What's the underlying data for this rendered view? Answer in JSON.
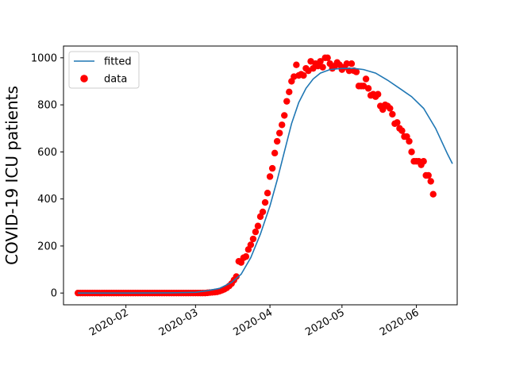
{
  "chart_data": {
    "type": "scatter",
    "title": "",
    "xlabel": "",
    "ylabel": "COVID-19 ICU patients",
    "x_ticks": [
      "2020-02",
      "2020-03",
      "2020-04",
      "2020-05",
      "2020-06"
    ],
    "y_ticks": [
      "0",
      "200",
      "400",
      "600",
      "800",
      "1000"
    ],
    "xlim": [
      "2020-01-06",
      "2020-06-18"
    ],
    "ylim": [
      -50,
      1050
    ],
    "grid": false,
    "legend_position": "top-left",
    "legend": [
      {
        "label": "fitted",
        "kind": "line",
        "color": "#1f77b4"
      },
      {
        "label": "data",
        "kind": "marker",
        "color": "#ff0000"
      }
    ],
    "series": [
      {
        "name": "fitted",
        "kind": "line",
        "color": "#1f77b4",
        "points": [
          [
            "2020-01-12",
            0
          ],
          [
            "2020-02-01",
            0
          ],
          [
            "2020-02-20",
            1
          ],
          [
            "2020-03-01",
            3
          ],
          [
            "2020-03-06",
            10
          ],
          [
            "2020-03-11",
            20
          ],
          [
            "2020-03-16",
            45
          ],
          [
            "2020-03-20",
            80
          ],
          [
            "2020-03-24",
            150
          ],
          [
            "2020-03-28",
            250
          ],
          [
            "2020-04-01",
            370
          ],
          [
            "2020-04-04",
            480
          ],
          [
            "2020-04-07",
            600
          ],
          [
            "2020-04-10",
            720
          ],
          [
            "2020-04-13",
            810
          ],
          [
            "2020-04-16",
            870
          ],
          [
            "2020-04-19",
            910
          ],
          [
            "2020-04-22",
            935
          ],
          [
            "2020-04-26",
            950
          ],
          [
            "2020-05-01",
            955
          ],
          [
            "2020-05-06",
            955
          ],
          [
            "2020-05-10",
            950
          ],
          [
            "2020-05-15",
            935
          ],
          [
            "2020-05-20",
            905
          ],
          [
            "2020-05-25",
            870
          ],
          [
            "2020-05-30",
            835
          ],
          [
            "2020-06-04",
            785
          ],
          [
            "2020-06-09",
            700
          ],
          [
            "2020-06-14",
            590
          ],
          [
            "2020-06-16",
            550
          ]
        ]
      },
      {
        "name": "data",
        "kind": "scatter",
        "color": "#ff0000",
        "points": [
          [
            "2020-01-12",
            0
          ],
          [
            "2020-01-13",
            0
          ],
          [
            "2020-01-14",
            0
          ],
          [
            "2020-01-15",
            0
          ],
          [
            "2020-01-16",
            0
          ],
          [
            "2020-01-17",
            0
          ],
          [
            "2020-01-18",
            0
          ],
          [
            "2020-01-19",
            0
          ],
          [
            "2020-01-20",
            0
          ],
          [
            "2020-01-21",
            0
          ],
          [
            "2020-01-22",
            0
          ],
          [
            "2020-01-23",
            0
          ],
          [
            "2020-01-24",
            0
          ],
          [
            "2020-01-25",
            0
          ],
          [
            "2020-01-26",
            0
          ],
          [
            "2020-01-27",
            0
          ],
          [
            "2020-01-28",
            0
          ],
          [
            "2020-01-29",
            0
          ],
          [
            "2020-01-30",
            0
          ],
          [
            "2020-01-31",
            0
          ],
          [
            "2020-02-01",
            0
          ],
          [
            "2020-02-02",
            0
          ],
          [
            "2020-02-03",
            0
          ],
          [
            "2020-02-04",
            0
          ],
          [
            "2020-02-05",
            0
          ],
          [
            "2020-02-06",
            0
          ],
          [
            "2020-02-07",
            0
          ],
          [
            "2020-02-08",
            0
          ],
          [
            "2020-02-09",
            0
          ],
          [
            "2020-02-10",
            0
          ],
          [
            "2020-02-11",
            0
          ],
          [
            "2020-02-12",
            0
          ],
          [
            "2020-02-13",
            0
          ],
          [
            "2020-02-14",
            0
          ],
          [
            "2020-02-15",
            0
          ],
          [
            "2020-02-16",
            0
          ],
          [
            "2020-02-17",
            0
          ],
          [
            "2020-02-18",
            0
          ],
          [
            "2020-02-19",
            0
          ],
          [
            "2020-02-20",
            0
          ],
          [
            "2020-02-21",
            0
          ],
          [
            "2020-02-22",
            0
          ],
          [
            "2020-02-23",
            0
          ],
          [
            "2020-02-24",
            0
          ],
          [
            "2020-02-25",
            0
          ],
          [
            "2020-02-26",
            0
          ],
          [
            "2020-02-27",
            0
          ],
          [
            "2020-02-28",
            0
          ],
          [
            "2020-02-29",
            0
          ],
          [
            "2020-03-01",
            0
          ],
          [
            "2020-03-02",
            0
          ],
          [
            "2020-03-03",
            0
          ],
          [
            "2020-03-04",
            0
          ],
          [
            "2020-03-05",
            0
          ],
          [
            "2020-03-06",
            1
          ],
          [
            "2020-03-07",
            2
          ],
          [
            "2020-03-08",
            3
          ],
          [
            "2020-03-09",
            4
          ],
          [
            "2020-03-10",
            5
          ],
          [
            "2020-03-11",
            8
          ],
          [
            "2020-03-12",
            12
          ],
          [
            "2020-03-13",
            16
          ],
          [
            "2020-03-14",
            22
          ],
          [
            "2020-03-15",
            30
          ],
          [
            "2020-03-16",
            40
          ],
          [
            "2020-03-17",
            55
          ],
          [
            "2020-03-18",
            70
          ],
          [
            "2020-03-19",
            135
          ],
          [
            "2020-03-20",
            130
          ],
          [
            "2020-03-21",
            150
          ],
          [
            "2020-03-22",
            155
          ],
          [
            "2020-03-23",
            185
          ],
          [
            "2020-03-24",
            205
          ],
          [
            "2020-03-25",
            230
          ],
          [
            "2020-03-26",
            260
          ],
          [
            "2020-03-27",
            285
          ],
          [
            "2020-03-28",
            325
          ],
          [
            "2020-03-29",
            345
          ],
          [
            "2020-03-30",
            385
          ],
          [
            "2020-03-31",
            425
          ],
          [
            "2020-04-01",
            495
          ],
          [
            "2020-04-02",
            530
          ],
          [
            "2020-04-03",
            595
          ],
          [
            "2020-04-04",
            645
          ],
          [
            "2020-04-05",
            680
          ],
          [
            "2020-04-06",
            715
          ],
          [
            "2020-04-07",
            755
          ],
          [
            "2020-04-08",
            815
          ],
          [
            "2020-04-09",
            855
          ],
          [
            "2020-04-10",
            900
          ],
          [
            "2020-04-11",
            920
          ],
          [
            "2020-04-12",
            970
          ],
          [
            "2020-04-13",
            925
          ],
          [
            "2020-04-14",
            930
          ],
          [
            "2020-04-15",
            925
          ],
          [
            "2020-04-16",
            955
          ],
          [
            "2020-04-17",
            945
          ],
          [
            "2020-04-18",
            985
          ],
          [
            "2020-04-19",
            955
          ],
          [
            "2020-04-20",
            975
          ],
          [
            "2020-04-21",
            965
          ],
          [
            "2020-04-22",
            985
          ],
          [
            "2020-04-23",
            960
          ],
          [
            "2020-04-24",
            1000
          ],
          [
            "2020-04-25",
            1000
          ],
          [
            "2020-04-26",
            975
          ],
          [
            "2020-04-27",
            955
          ],
          [
            "2020-04-28",
            965
          ],
          [
            "2020-04-29",
            980
          ],
          [
            "2020-04-30",
            970
          ],
          [
            "2020-05-01",
            950
          ],
          [
            "2020-05-02",
            960
          ],
          [
            "2020-05-03",
            975
          ],
          [
            "2020-05-04",
            945
          ],
          [
            "2020-05-05",
            975
          ],
          [
            "2020-05-06",
            945
          ],
          [
            "2020-05-07",
            940
          ],
          [
            "2020-05-08",
            880
          ],
          [
            "2020-05-09",
            880
          ],
          [
            "2020-05-10",
            880
          ],
          [
            "2020-05-11",
            910
          ],
          [
            "2020-05-12",
            870
          ],
          [
            "2020-05-13",
            840
          ],
          [
            "2020-05-14",
            845
          ],
          [
            "2020-05-15",
            835
          ],
          [
            "2020-05-16",
            845
          ],
          [
            "2020-05-17",
            795
          ],
          [
            "2020-05-18",
            780
          ],
          [
            "2020-05-19",
            800
          ],
          [
            "2020-05-20",
            795
          ],
          [
            "2020-05-21",
            785
          ],
          [
            "2020-05-22",
            760
          ],
          [
            "2020-05-23",
            720
          ],
          [
            "2020-05-24",
            725
          ],
          [
            "2020-05-25",
            700
          ],
          [
            "2020-05-26",
            690
          ],
          [
            "2020-05-27",
            665
          ],
          [
            "2020-05-28",
            665
          ],
          [
            "2020-05-29",
            645
          ],
          [
            "2020-05-30",
            600
          ],
          [
            "2020-05-31",
            560
          ],
          [
            "2020-06-01",
            560
          ],
          [
            "2020-06-02",
            560
          ],
          [
            "2020-06-03",
            545
          ],
          [
            "2020-06-04",
            560
          ],
          [
            "2020-06-05",
            500
          ],
          [
            "2020-06-06",
            500
          ],
          [
            "2020-06-07",
            475
          ],
          [
            "2020-06-08",
            420
          ]
        ]
      }
    ]
  }
}
